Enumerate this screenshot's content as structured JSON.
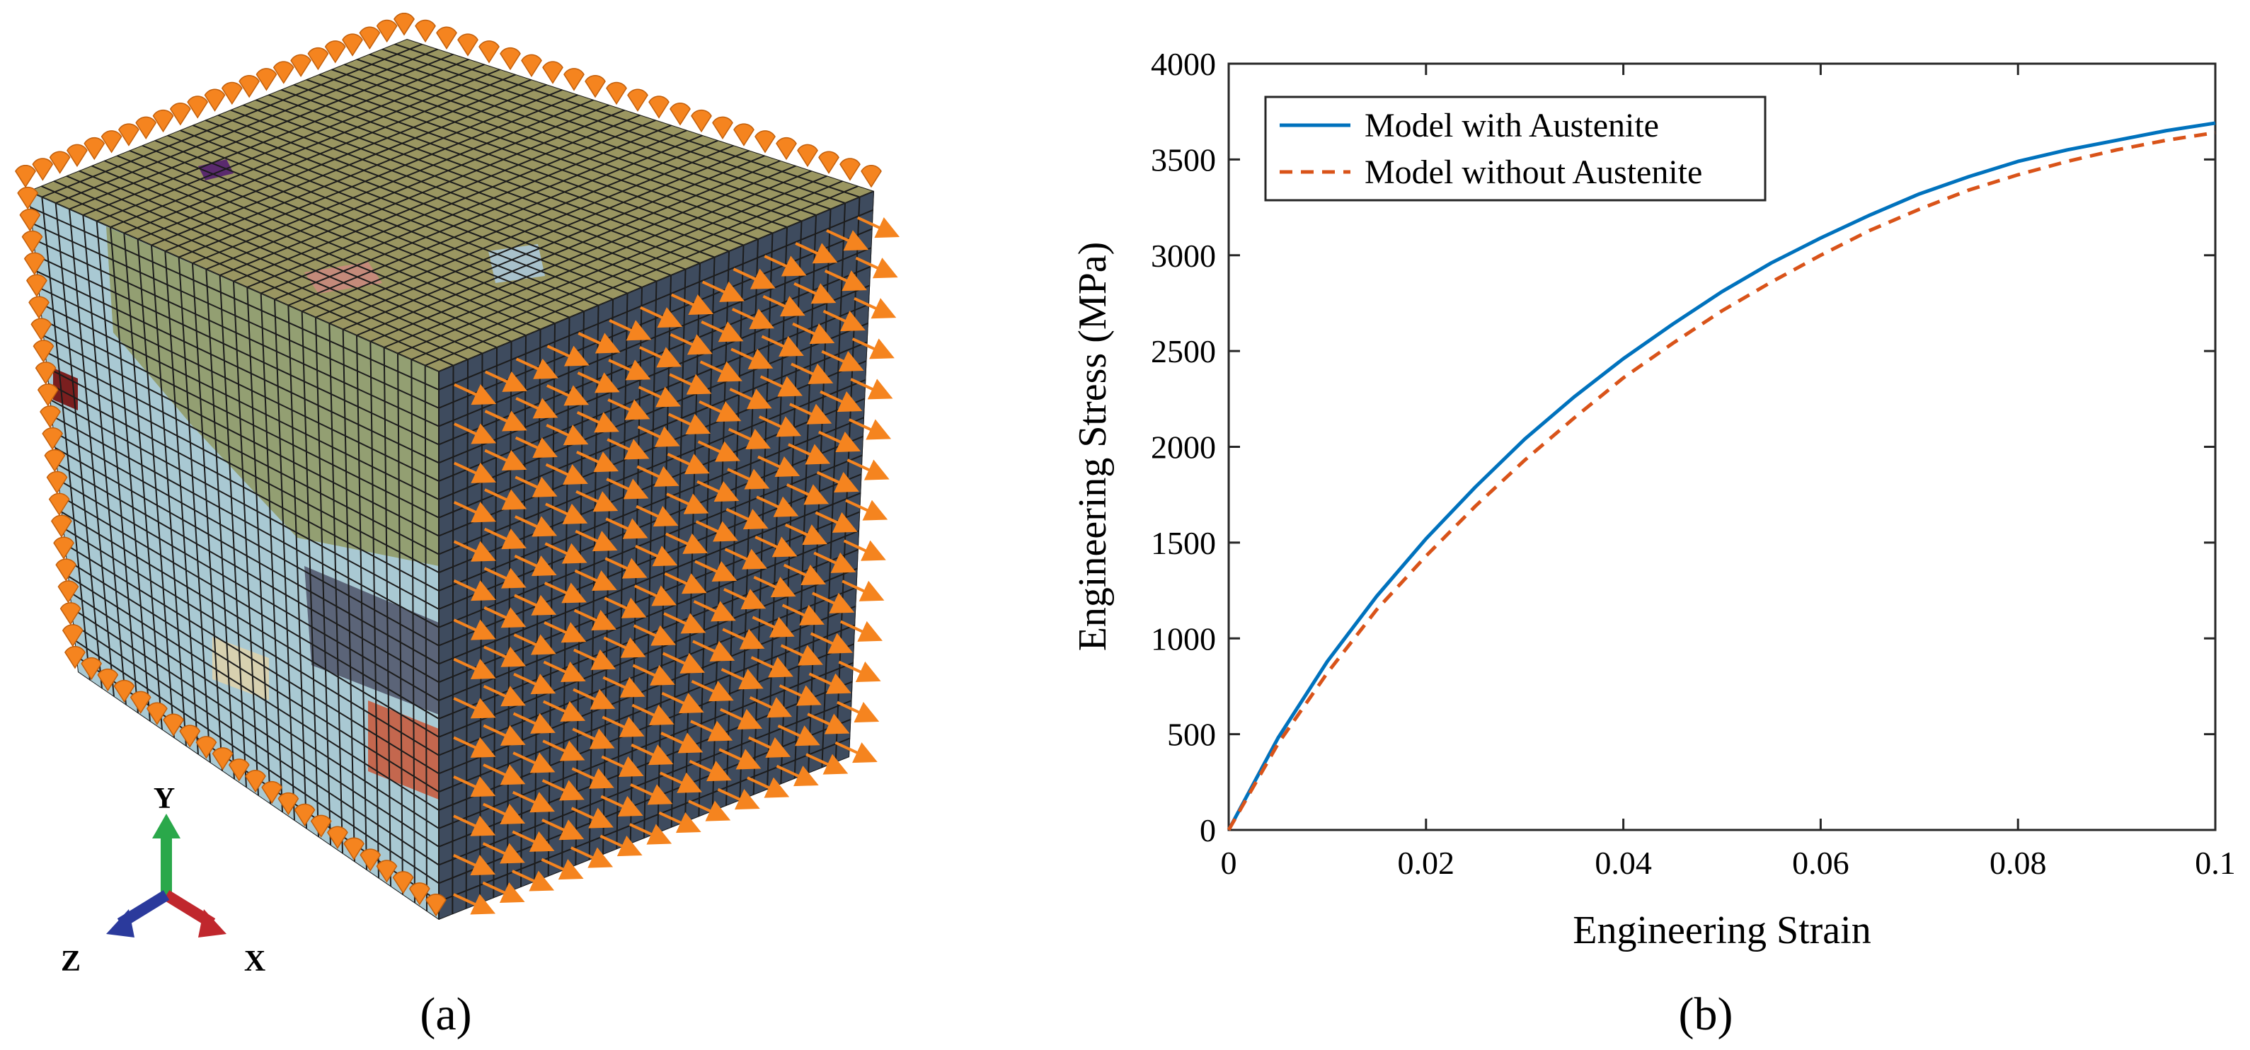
{
  "panels": {
    "a": {
      "caption": "(a)",
      "axes_triad": {
        "y": "Y",
        "z": "Z",
        "x": "X"
      },
      "colors": {
        "top_face": "#9a9661",
        "left_face": "#a9c9d3",
        "right_face": "#3e4b5e",
        "grid_line": "#1c1c1c",
        "arrow": "#f5841f",
        "grain_red": "#c4674e",
        "grain_dark": "#5b6478",
        "grain_maroon": "#7a1f1f",
        "grain_purple": "#5a2a6e",
        "axis_y": "#2aa84a",
        "axis_x": "#c0272d",
        "axis_z": "#2b3a9c"
      }
    },
    "b": {
      "caption": "(b)"
    }
  },
  "chart_data": {
    "type": "line",
    "title": "",
    "xlabel": "Engineering Strain",
    "ylabel": "Engineering Stress (MPa)",
    "xlim": [
      0,
      0.1
    ],
    "ylim": [
      0,
      4000
    ],
    "xticks": [
      0,
      0.02,
      0.04,
      0.06,
      0.08,
      0.1
    ],
    "xtick_labels": [
      "0",
      "0.02",
      "0.04",
      "0.06",
      "0.08",
      "0.1"
    ],
    "yticks": [
      0,
      500,
      1000,
      1500,
      2000,
      2500,
      3000,
      3500,
      4000
    ],
    "ytick_labels": [
      "0",
      "500",
      "1000",
      "1500",
      "2000",
      "2500",
      "3000",
      "3500",
      "4000"
    ],
    "grid": false,
    "legend_position": "top-left",
    "x": [
      0,
      0.005,
      0.01,
      0.015,
      0.02,
      0.025,
      0.03,
      0.035,
      0.04,
      0.045,
      0.05,
      0.055,
      0.06,
      0.065,
      0.07,
      0.075,
      0.08,
      0.085,
      0.09,
      0.095,
      0.1
    ],
    "series": [
      {
        "name": "Model with Austenite",
        "color": "#0072bd",
        "dash": "solid",
        "values": [
          0,
          480,
          880,
          1220,
          1520,
          1790,
          2040,
          2260,
          2460,
          2640,
          2810,
          2960,
          3090,
          3210,
          3320,
          3410,
          3490,
          3550,
          3600,
          3650,
          3690
        ]
      },
      {
        "name": "Model without Austenite",
        "color": "#d95319",
        "dash": "dashed",
        "values": [
          0,
          450,
          820,
          1150,
          1430,
          1690,
          1930,
          2150,
          2360,
          2540,
          2710,
          2860,
          3000,
          3130,
          3240,
          3340,
          3420,
          3490,
          3550,
          3600,
          3640
        ]
      }
    ]
  }
}
